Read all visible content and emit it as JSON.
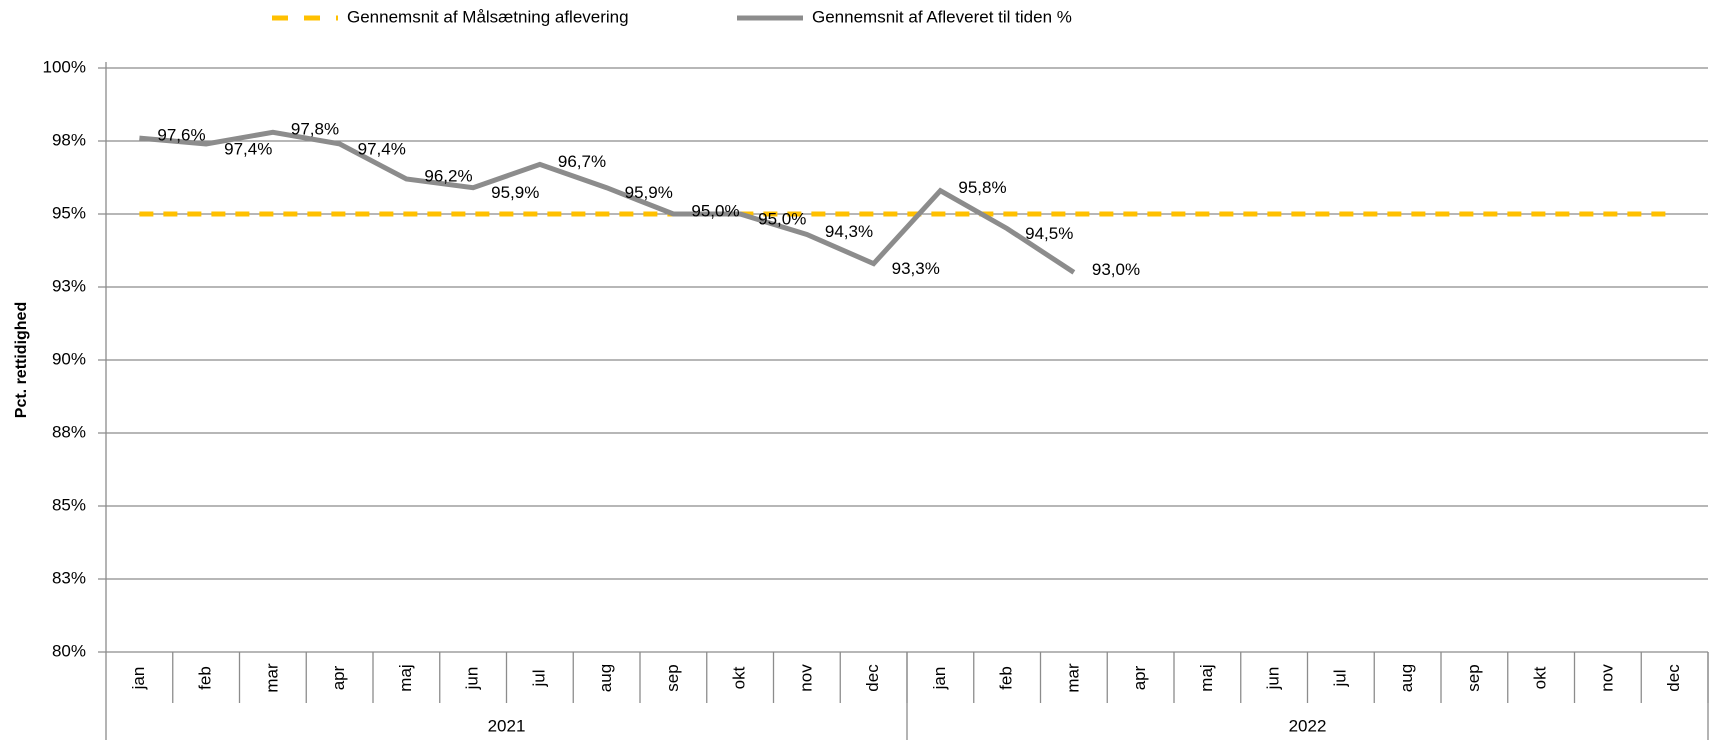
{
  "chart_data": {
    "type": "line",
    "y_label": "Pct. rettidighed",
    "categories": [
      "jan",
      "feb",
      "mar",
      "apr",
      "maj",
      "jun",
      "jul",
      "aug",
      "sep",
      "okt",
      "nov",
      "dec",
      "jan",
      "feb",
      "mar",
      "apr",
      "maj",
      "jun",
      "jul",
      "aug",
      "sep",
      "okt",
      "nov",
      "dec"
    ],
    "category_groups": [
      "2021",
      "2022"
    ],
    "series": [
      {
        "name": "Gennemsnit af Målsætning aflevering",
        "color": "#ffc000",
        "dashed": true,
        "values": [
          95,
          95,
          95,
          95,
          95,
          95,
          95,
          95,
          95,
          95,
          95,
          95,
          95,
          95,
          95,
          95,
          95,
          95,
          95,
          95,
          95,
          95,
          95,
          95
        ]
      },
      {
        "name": "Gennemsnit af Afleveret til tiden %",
        "color": "#8c8c8c",
        "dashed": false,
        "values": [
          97.6,
          97.4,
          97.8,
          97.4,
          96.2,
          95.9,
          96.7,
          95.9,
          95.0,
          95.0,
          94.3,
          93.3,
          95.8,
          94.5,
          93.0,
          null,
          null,
          null,
          null,
          null,
          null,
          null,
          null,
          null
        ],
        "value_labels": [
          "97,6%",
          "97,4%",
          "97,8%",
          "97,4%",
          "96,2%",
          "95,9%",
          "96,7%",
          "95,9%",
          "95,0%",
          "95,0%",
          "94,3%",
          "93,3%",
          "95,8%",
          "94,5%",
          "93,0%",
          null,
          null,
          null,
          null,
          null,
          null,
          null,
          null,
          null
        ]
      }
    ],
    "ylim": [
      80,
      100
    ],
    "yticks": [
      {
        "value": 80,
        "label": "80%"
      },
      {
        "value": 82.5,
        "label": "83%"
      },
      {
        "value": 85,
        "label": "85%"
      },
      {
        "value": 87.5,
        "label": "88%"
      },
      {
        "value": 90,
        "label": "90%"
      },
      {
        "value": 92.5,
        "label": "93%"
      },
      {
        "value": 95,
        "label": "95%"
      },
      {
        "value": 97.5,
        "label": "98%"
      },
      {
        "value": 100,
        "label": "100%"
      }
    ],
    "grid": true,
    "legend": "top"
  }
}
